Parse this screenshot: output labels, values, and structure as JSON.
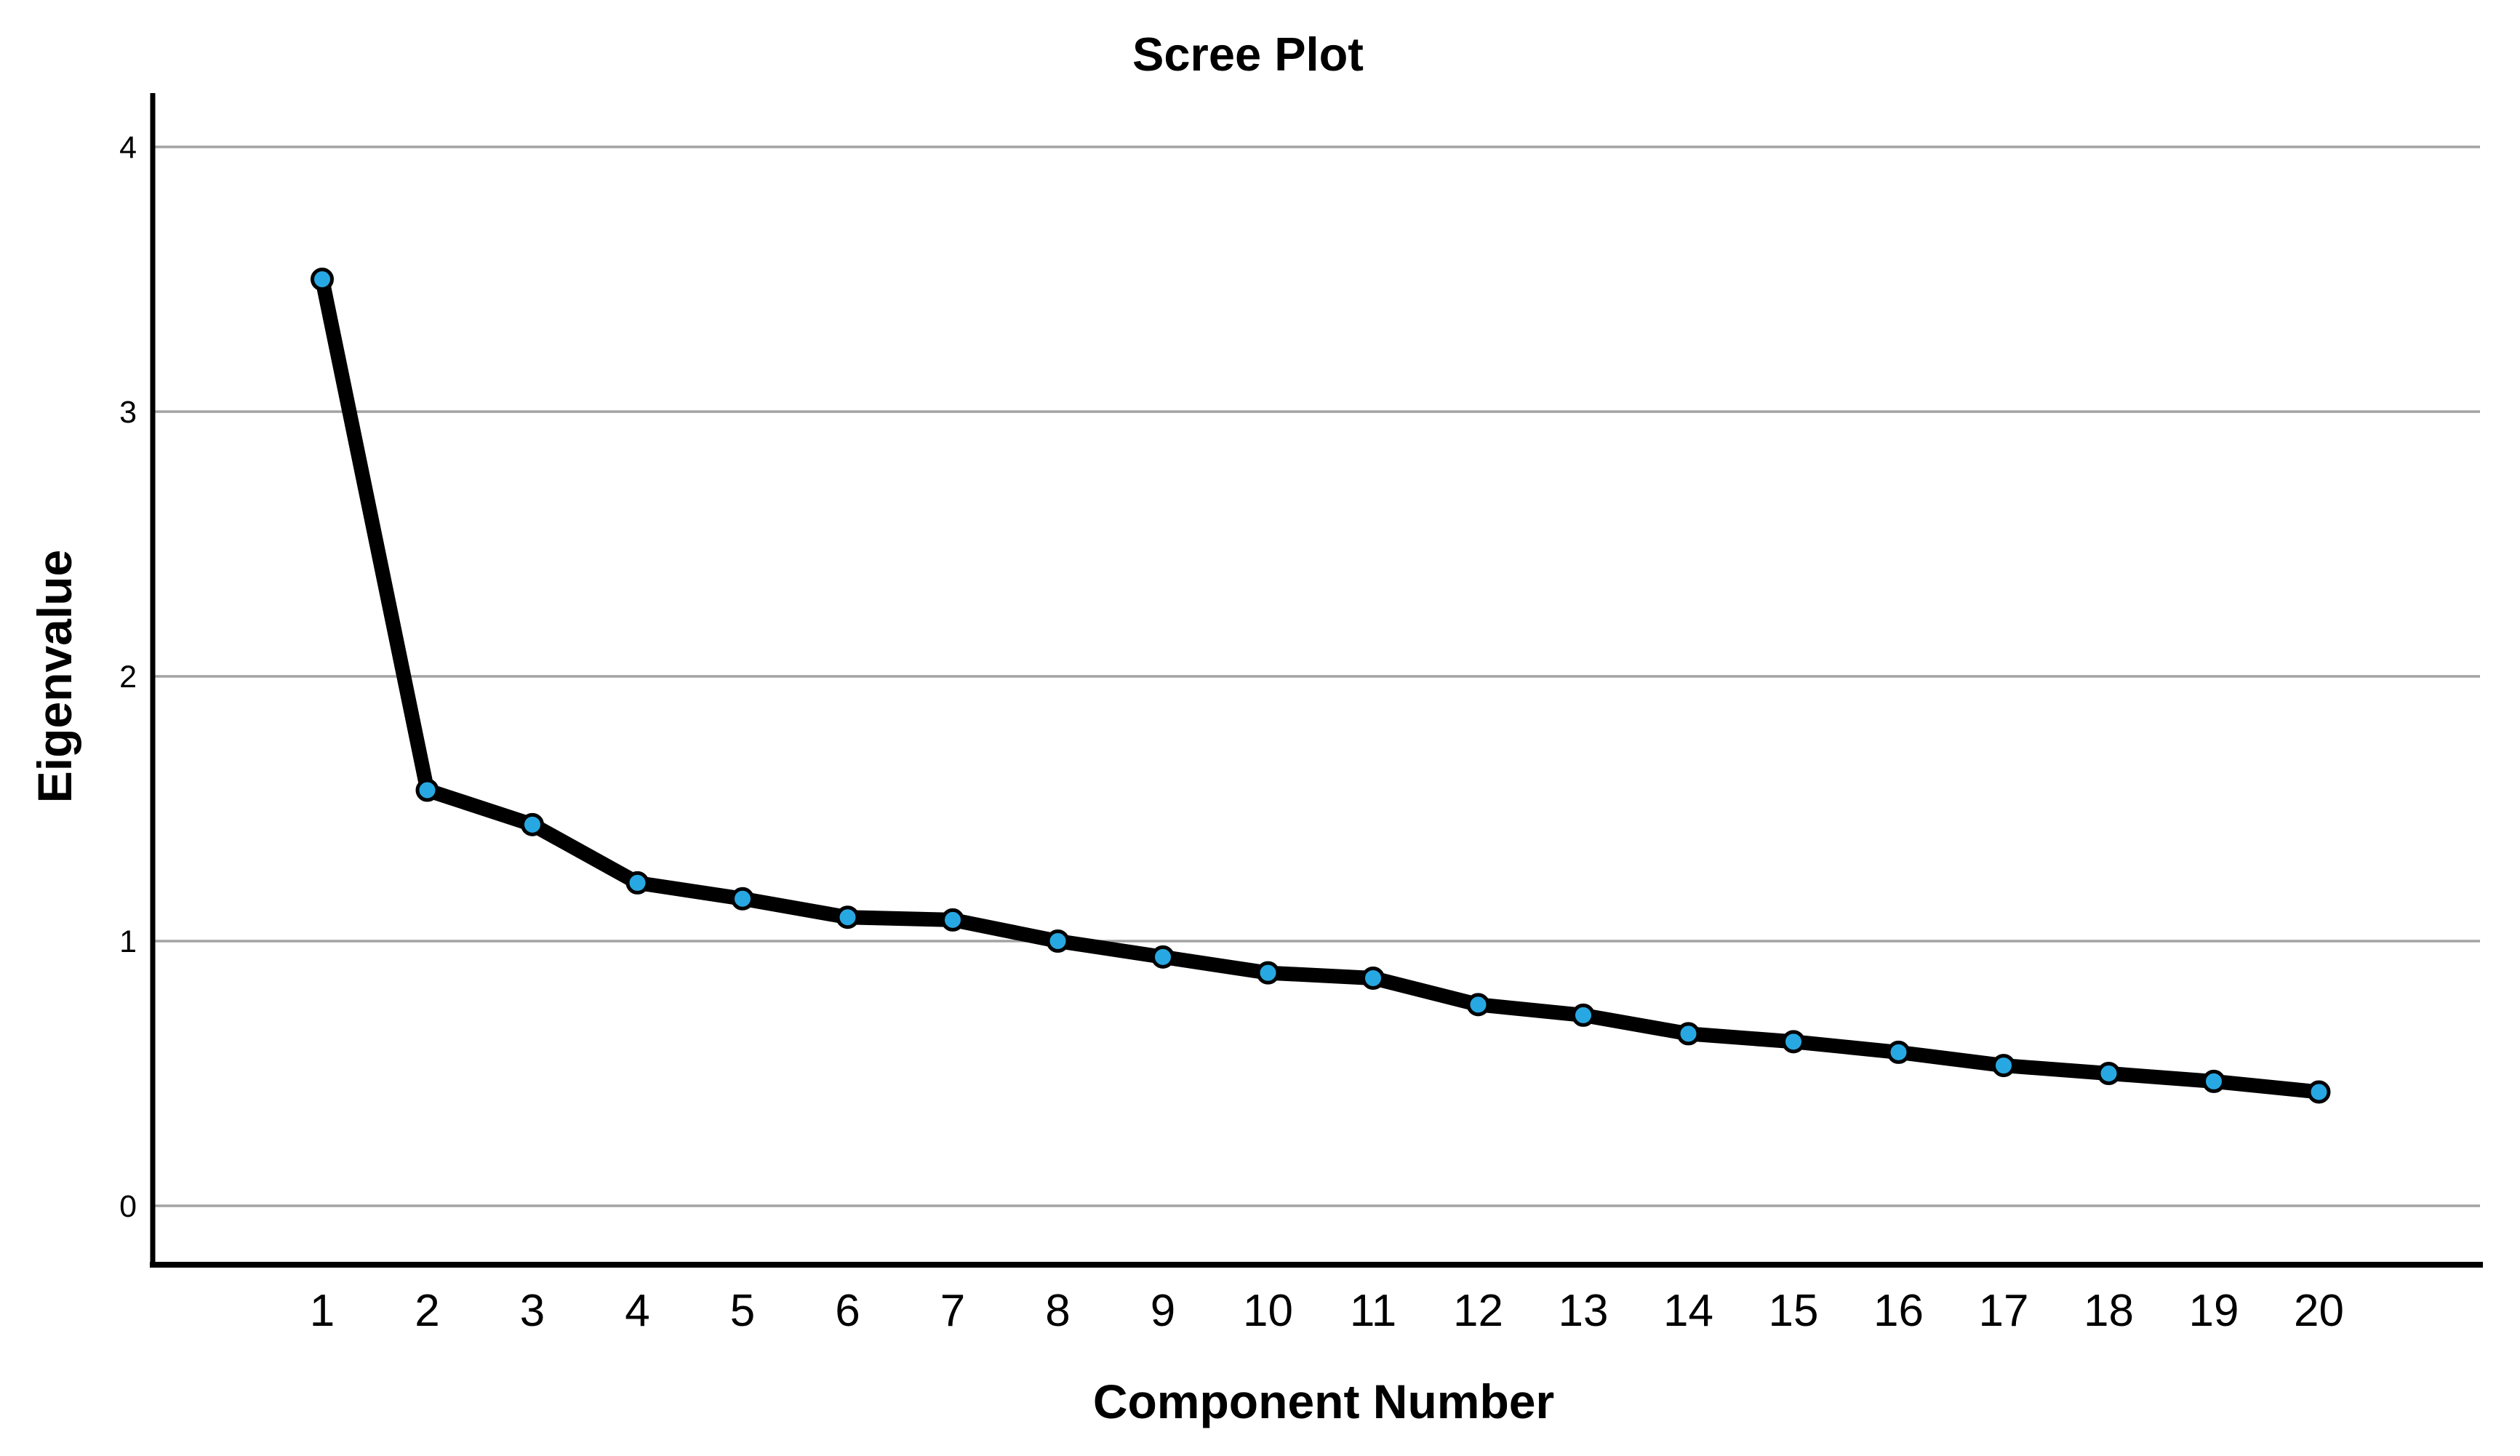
{
  "title": "Scree Plot",
  "x_axis": {
    "label": "Component Number",
    "ticks": [
      "1",
      "2",
      "3",
      "4",
      "5",
      "6",
      "7",
      "8",
      "9",
      "10",
      "11",
      "12",
      "13",
      "14",
      "15",
      "16",
      "17",
      "18",
      "19",
      "20"
    ]
  },
  "y_axis": {
    "label": "Eigenvalue",
    "ticks": [
      "0",
      "1",
      "2",
      "3",
      "4"
    ]
  },
  "colors": {
    "marker_fill": "#28A8E2",
    "marker_outline": "#000000",
    "line": "#000000",
    "gridline": "#A3A3A3",
    "axis": "#000000",
    "text": "#000000",
    "background": "#FFFFFF"
  },
  "chart_data": {
    "type": "line",
    "title": "Scree Plot",
    "xlabel": "Component Number",
    "ylabel": "Eigenvalue",
    "x": [
      1,
      2,
      3,
      4,
      5,
      6,
      7,
      8,
      9,
      10,
      11,
      12,
      13,
      14,
      15,
      16,
      17,
      18,
      19,
      20
    ],
    "values": [
      3.5,
      1.57,
      1.44,
      1.22,
      1.16,
      1.09,
      1.08,
      1.0,
      0.94,
      0.88,
      0.86,
      0.76,
      0.72,
      0.65,
      0.62,
      0.58,
      0.53,
      0.5,
      0.47,
      0.43
    ],
    "ylim": [
      -0.22,
      4.2
    ],
    "xlim": [
      0,
      21.3
    ],
    "y_gridlines": [
      0,
      1,
      2,
      3,
      4
    ],
    "grid": "horizontal-only",
    "legend": "none",
    "marker": "circle"
  }
}
